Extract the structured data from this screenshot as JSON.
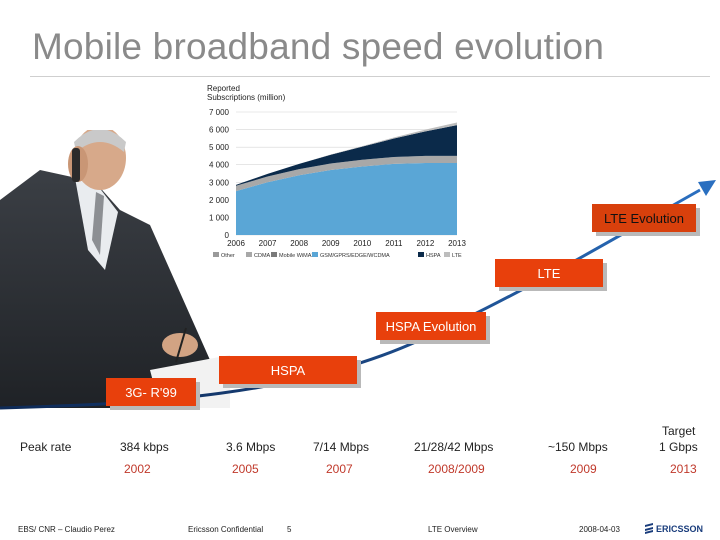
{
  "slide": {
    "title": "Mobile broadband speed evolution"
  },
  "chart_data": {
    "type": "area",
    "title": "Reported Subscriptions (million)",
    "title_line1": "Reported",
    "title_line2": "Subscriptions (million)",
    "x": [
      "2006",
      "2007",
      "2008",
      "2009",
      "2010",
      "2011",
      "2012",
      "2013"
    ],
    "ylim": [
      0,
      7000
    ],
    "yticks": [
      "7 000",
      "6 000",
      "5 000",
      "4 000",
      "3 000",
      "2 000",
      "1 000",
      "0"
    ],
    "legend": [
      "Other",
      "CDMA",
      "Mobile WiMAX",
      "GSM/GPRS/EDGE/WCDMA",
      "HSPA",
      "LTE"
    ],
    "series": [
      {
        "name": "GSM/GPRS/EDGE/WCDMA",
        "color": "#5aa6d6",
        "values": [
          2500,
          3000,
          3400,
          3700,
          3900,
          4050,
          4100,
          4100
        ]
      },
      {
        "name": "CDMA",
        "color": "#a8a8a8",
        "values": [
          300,
          330,
          350,
          370,
          380,
          390,
          400,
          400
        ]
      },
      {
        "name": "HSPA",
        "color": "#0b2a4a",
        "values": [
          50,
          150,
          300,
          500,
          750,
          1050,
          1400,
          1750
        ]
      },
      {
        "name": "LTE",
        "color": "#bdbdbd",
        "values": [
          0,
          0,
          0,
          10,
          30,
          60,
          100,
          150
        ]
      }
    ],
    "grid": true
  },
  "steps": [
    {
      "label": "3G- R'99"
    },
    {
      "label": "HSPA"
    },
    {
      "label": "HSPA Evolution"
    },
    {
      "label": "LTE"
    },
    {
      "label": "LTE Evolution"
    }
  ],
  "peak": {
    "label": "Peak rate",
    "rates": [
      "384 kbps",
      "3.6 Mbps",
      "7/14 Mbps",
      "21/28/42 Mbps",
      "~150 Mbps"
    ],
    "target_label": "Target",
    "target_rate": "1 Gbps",
    "years": [
      "2002",
      "2005",
      "2007",
      "2008/2009",
      "2009",
      "2013"
    ]
  },
  "footer": {
    "dept": "EBS/ CNR – Claudio Perez",
    "confidential": "Ericsson Confidential",
    "page": "5",
    "doc": "LTE Overview",
    "date": "2008-04-03"
  },
  "logo": {
    "name": "ericsson-logo",
    "text": "ERICSSON",
    "color": "#1a3d7c"
  },
  "colors": {
    "accent": "#e8400c",
    "title": "#8a8a8a",
    "year": "#c0392b"
  }
}
